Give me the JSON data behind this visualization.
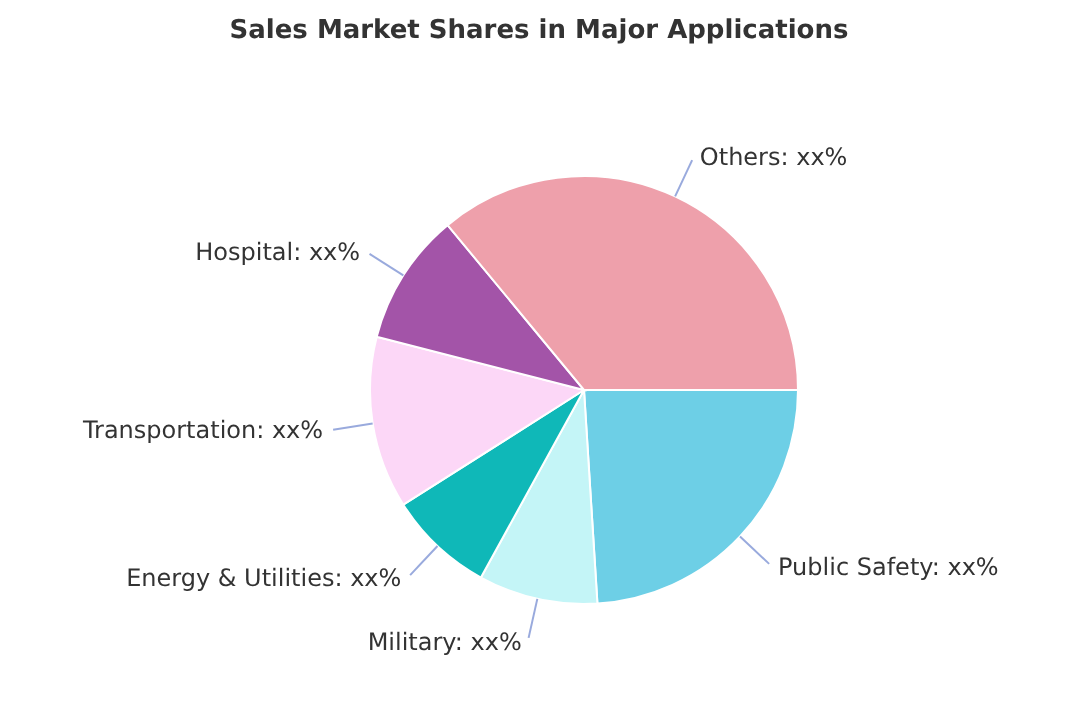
{
  "chart_data": {
    "type": "pie",
    "title": "Sales Market Shares in Major Applications",
    "categories": [
      "Public Safety",
      "Military",
      "Energy & Utilities",
      "Transportation",
      "Hospital",
      "Others"
    ],
    "values": [
      24,
      9,
      8,
      13,
      10,
      36
    ],
    "value_labels": [
      "xx%",
      "xx%",
      "xx%",
      "xx%",
      "xx%",
      "xx%"
    ],
    "colors": [
      "#6dcfe6",
      "#c4f5f7",
      "#0fb8b8",
      "#fcd7f7",
      "#a354a8",
      "#eea0ab"
    ],
    "legend": false
  }
}
